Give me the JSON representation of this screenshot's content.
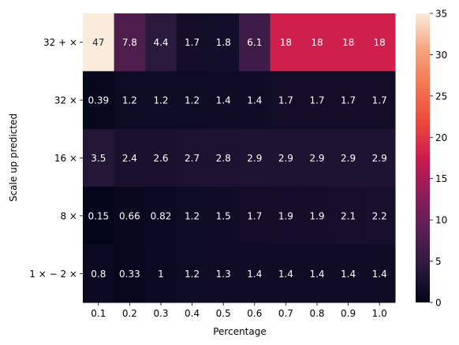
{
  "chart_data": {
    "type": "heatmap",
    "xlabel": "Percentage",
    "ylabel": "Scale up predicted",
    "x": [
      "0.1",
      "0.2",
      "0.3",
      "0.4",
      "0.5",
      "0.6",
      "0.7",
      "0.8",
      "0.9",
      "1.0"
    ],
    "y": [
      "32 + ×",
      "32 ×",
      "16 ×",
      "8 ×",
      "1 × − 2 ×"
    ],
    "values": [
      [
        47,
        7.8,
        4.4,
        1.7,
        1.8,
        6.1,
        18,
        18,
        18,
        18
      ],
      [
        0.39,
        1.2,
        1.2,
        1.2,
        1.4,
        1.4,
        1.7,
        1.7,
        1.7,
        1.7
      ],
      [
        3.5,
        2.4,
        2.6,
        2.7,
        2.8,
        2.9,
        2.9,
        2.9,
        2.9,
        2.9
      ],
      [
        0.15,
        0.66,
        0.82,
        1.2,
        1.5,
        1.7,
        1.9,
        1.9,
        2.1,
        2.2
      ],
      [
        0.8,
        0.33,
        1,
        1.2,
        1.3,
        1.4,
        1.4,
        1.4,
        1.4,
        1.4
      ]
    ],
    "labels": [
      [
        "47",
        "7.8",
        "4.4",
        "1.7",
        "1.8",
        "6.1",
        "18",
        "18",
        "18",
        "18"
      ],
      [
        "0.39",
        "1.2",
        "1.2",
        "1.2",
        "1.4",
        "1.4",
        "1.7",
        "1.7",
        "1.7",
        "1.7"
      ],
      [
        "3.5",
        "2.4",
        "2.6",
        "2.7",
        "2.8",
        "2.9",
        "2.9",
        "2.9",
        "2.9",
        "2.9"
      ],
      [
        "0.15",
        "0.66",
        "0.82",
        "1.2",
        "1.5",
        "1.7",
        "1.9",
        "1.9",
        "2.1",
        "2.2"
      ],
      [
        "0.8",
        "0.33",
        "1",
        "1.2",
        "1.3",
        "1.4",
        "1.4",
        "1.4",
        "1.4",
        "1.4"
      ]
    ],
    "colorbar": {
      "range": [
        0,
        35
      ],
      "ticks": [
        "0",
        "5",
        "10",
        "15",
        "20",
        "25",
        "30",
        "35"
      ],
      "colormap": "rocket"
    }
  }
}
